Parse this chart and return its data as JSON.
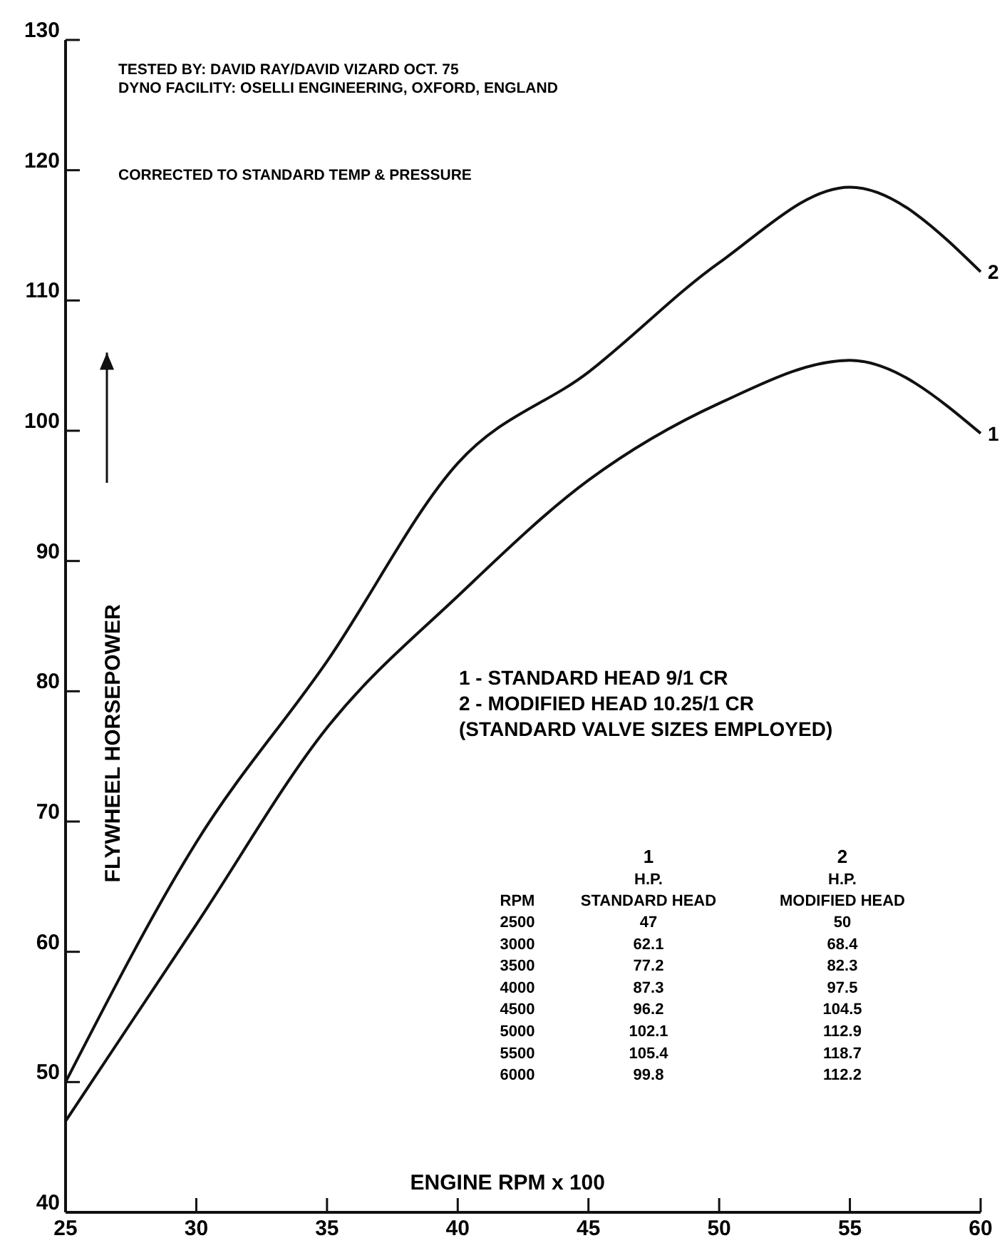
{
  "chart_data": {
    "type": "line",
    "xlabel": "ENGINE RPM x 100",
    "ylabel": "FLYWHEEL HORSEPOWER",
    "x": [
      25,
      30,
      35,
      40,
      45,
      50,
      55,
      60
    ],
    "series": [
      {
        "name": "1",
        "color": "#111111",
        "values": [
          47,
          62.1,
          77.2,
          87.3,
          96.2,
          102.1,
          105.4,
          99.8
        ]
      },
      {
        "name": "2",
        "color": "#111111",
        "values": [
          50,
          68.4,
          82.3,
          97.5,
          104.5,
          112.9,
          118.7,
          112.2
        ]
      }
    ],
    "xlim": [
      25,
      60
    ],
    "xticks": [
      25,
      30,
      35,
      40,
      45,
      50,
      55,
      60
    ],
    "ylim": [
      40,
      130
    ],
    "yticks": [
      40,
      50,
      60,
      70,
      80,
      90,
      100,
      110,
      120,
      130
    ],
    "grid": false,
    "marker": "none",
    "line_style": "solid",
    "annotations": [
      "TESTED BY: DAVID RAY/DAVID VIZARD OCT. 75",
      "DYNO FACILITY: OSELLI ENGINEERING, OXFORD, ENGLAND",
      "CORRECTED TO STANDARD TEMP & PRESSURE",
      "1 - STANDARD HEAD 9/1 CR",
      "2 - MODIFIED HEAD 10.25/1 CR",
      "(STANDARD VALVE SIZES EMPLOYED)",
      "RPM",
      "H.P.",
      "STANDARD HEAD",
      "H.P.",
      "MODIFIED HEAD",
      "2500",
      "3000",
      "3500",
      "4000",
      "4500",
      "5000",
      "5500",
      "6000",
      "47",
      "62.1",
      "77.2",
      "87.3",
      "96.2",
      "102.1",
      "105.4",
      "99.8",
      "50",
      "68.4",
      "82.3",
      "97.5",
      "104.5",
      "112.9",
      "118.7",
      "112.2"
    ]
  }
}
